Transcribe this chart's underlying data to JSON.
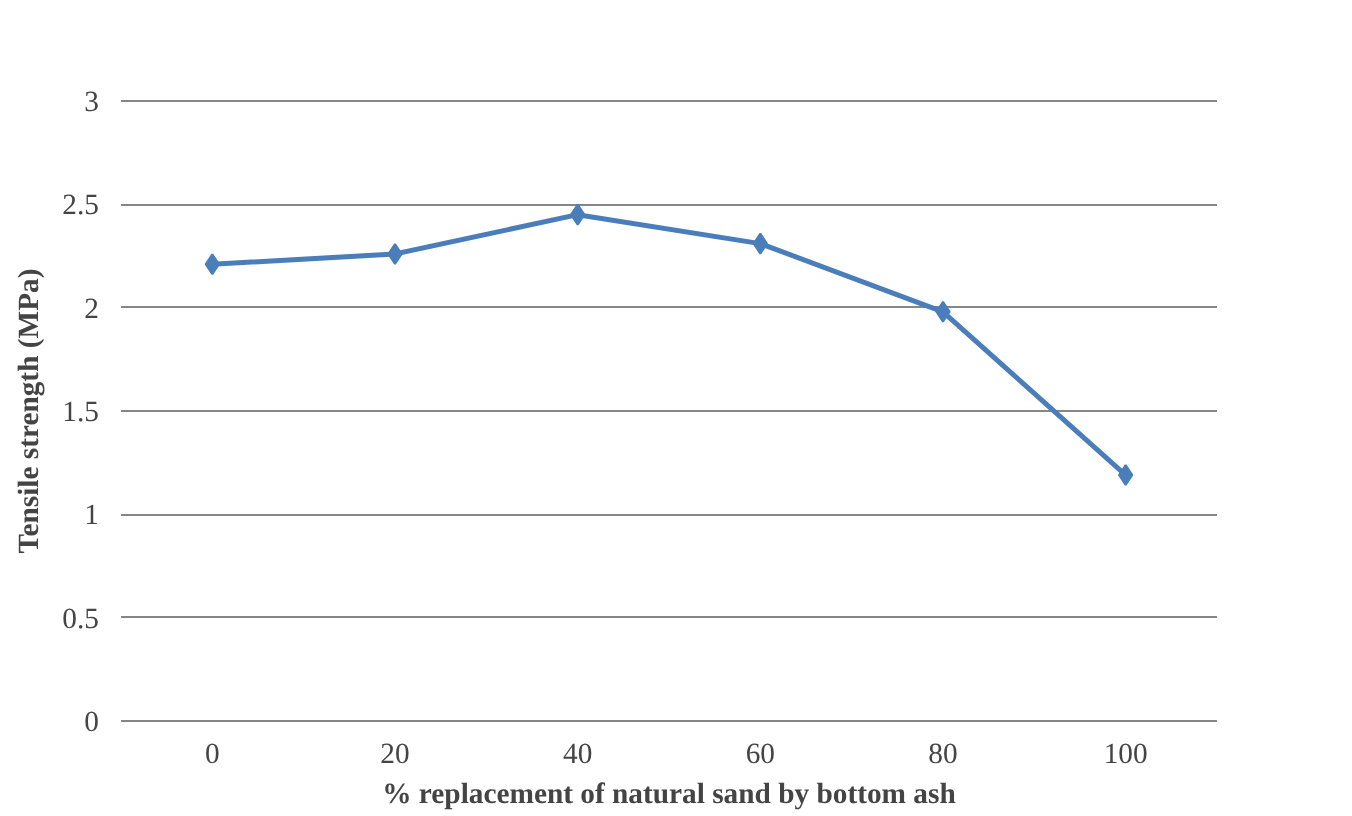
{
  "chart_data": {
    "type": "line",
    "xlabel": "% replacement of natural sand by bottom ash",
    "ylabel": "Tensile strength (MPa)",
    "categories": [
      "0",
      "20",
      "40",
      "60",
      "80",
      "100"
    ],
    "series": [
      {
        "color": "#4a7ebb",
        "values": [
          2.21,
          2.26,
          2.45,
          2.31,
          1.98,
          1.19
        ]
      }
    ],
    "ylim": [
      0,
      3
    ],
    "yticks": [
      0,
      0.5,
      1,
      1.5,
      2,
      2.5,
      3
    ],
    "grid": "y",
    "marker": "diamond",
    "line_style": "solid"
  }
}
